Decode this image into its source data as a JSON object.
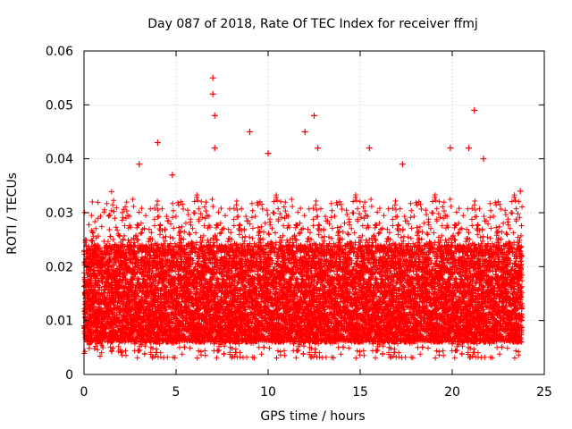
{
  "chart_data": {
    "type": "scatter",
    "title": "Day 087 of 2018, Rate Of TEC Index for receiver ffmj",
    "xlabel": "GPS time / hours",
    "ylabel": "ROTI / TECUs",
    "xlim": [
      0,
      25
    ],
    "ylim": [
      0,
      0.06
    ],
    "x_ticks": [
      0,
      5,
      10,
      15,
      20,
      25
    ],
    "x_tick_labels": [
      "0",
      "5",
      "10",
      "15",
      "20",
      "25"
    ],
    "y_ticks": [
      0,
      0.01,
      0.02,
      0.03,
      0.04,
      0.05,
      0.06
    ],
    "y_tick_labels": [
      "0",
      "0.01",
      "0.02",
      "0.03",
      "0.04",
      "0.05",
      "0.06"
    ],
    "grid": true,
    "marker": "+",
    "series": [
      {
        "name": "ROTI",
        "color": "#ff0000",
        "time_range_hours": [
          0,
          23.8
        ],
        "sample_interval_hours": 0.01,
        "typical_range": [
          0.003,
          0.034
        ],
        "notable_points": [
          {
            "x": 3.0,
            "y": 0.039
          },
          {
            "x": 4.0,
            "y": 0.043
          },
          {
            "x": 4.8,
            "y": 0.037
          },
          {
            "x": 7.0,
            "y": 0.055
          },
          {
            "x": 7.0,
            "y": 0.052
          },
          {
            "x": 7.1,
            "y": 0.048
          },
          {
            "x": 7.1,
            "y": 0.042
          },
          {
            "x": 9.0,
            "y": 0.045
          },
          {
            "x": 10.0,
            "y": 0.041
          },
          {
            "x": 12.0,
            "y": 0.045
          },
          {
            "x": 12.5,
            "y": 0.048
          },
          {
            "x": 12.7,
            "y": 0.042
          },
          {
            "x": 15.5,
            "y": 0.042
          },
          {
            "x": 17.3,
            "y": 0.039
          },
          {
            "x": 19.9,
            "y": 0.042
          },
          {
            "x": 20.9,
            "y": 0.042
          },
          {
            "x": 21.2,
            "y": 0.049
          },
          {
            "x": 21.7,
            "y": 0.04
          },
          {
            "x": 23.7,
            "y": 0.034
          }
        ]
      }
    ]
  }
}
